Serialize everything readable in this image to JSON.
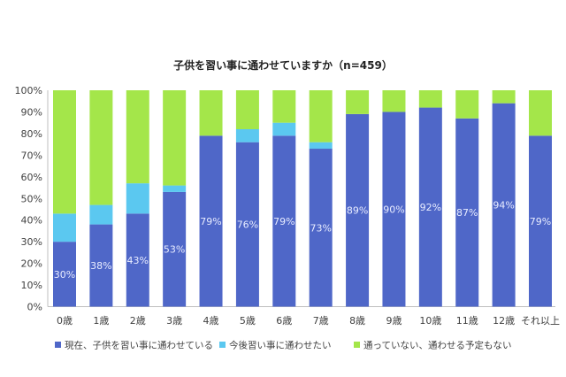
{
  "chart_data": {
    "type": "bar",
    "stacked": true,
    "title": "子供を習い事に通わせていますか（n=459）",
    "categories": [
      "0歳",
      "1歳",
      "2歳",
      "3歳",
      "4歳",
      "5歳",
      "6歳",
      "7歳",
      "8歳",
      "9歳",
      "10歳",
      "11歳",
      "12歳",
      "それ以上"
    ],
    "series": [
      {
        "name": "現在、子供を習い事に通わせている",
        "color": "#4f67c8",
        "values": [
          30,
          38,
          43,
          53,
          79,
          76,
          79,
          73,
          89,
          90,
          92,
          87,
          94,
          79
        ],
        "labels": [
          "30%",
          "38%",
          "43%",
          "53%",
          "79%",
          "76%",
          "79%",
          "73%",
          "89%",
          "90%",
          "92%",
          "87%",
          "94%",
          "79%"
        ]
      },
      {
        "name": "今後習い事に通わせたい",
        "color": "#5bc8f0",
        "values": [
          13,
          9,
          14,
          3,
          0,
          6,
          6,
          3,
          0,
          0,
          0,
          0,
          0,
          0
        ]
      },
      {
        "name": "通っていない、通わせる予定もない",
        "color": "#a4e64a",
        "values": [
          57,
          53,
          43,
          44,
          21,
          18,
          15,
          24,
          11,
          10,
          8,
          13,
          6,
          21
        ]
      }
    ],
    "yticks": [
      "0%",
      "10%",
      "20%",
      "30%",
      "40%",
      "50%",
      "60%",
      "70%",
      "80%",
      "90%",
      "100%"
    ],
    "ylim": [
      0,
      100
    ],
    "grid": false,
    "legend": "bottom"
  }
}
